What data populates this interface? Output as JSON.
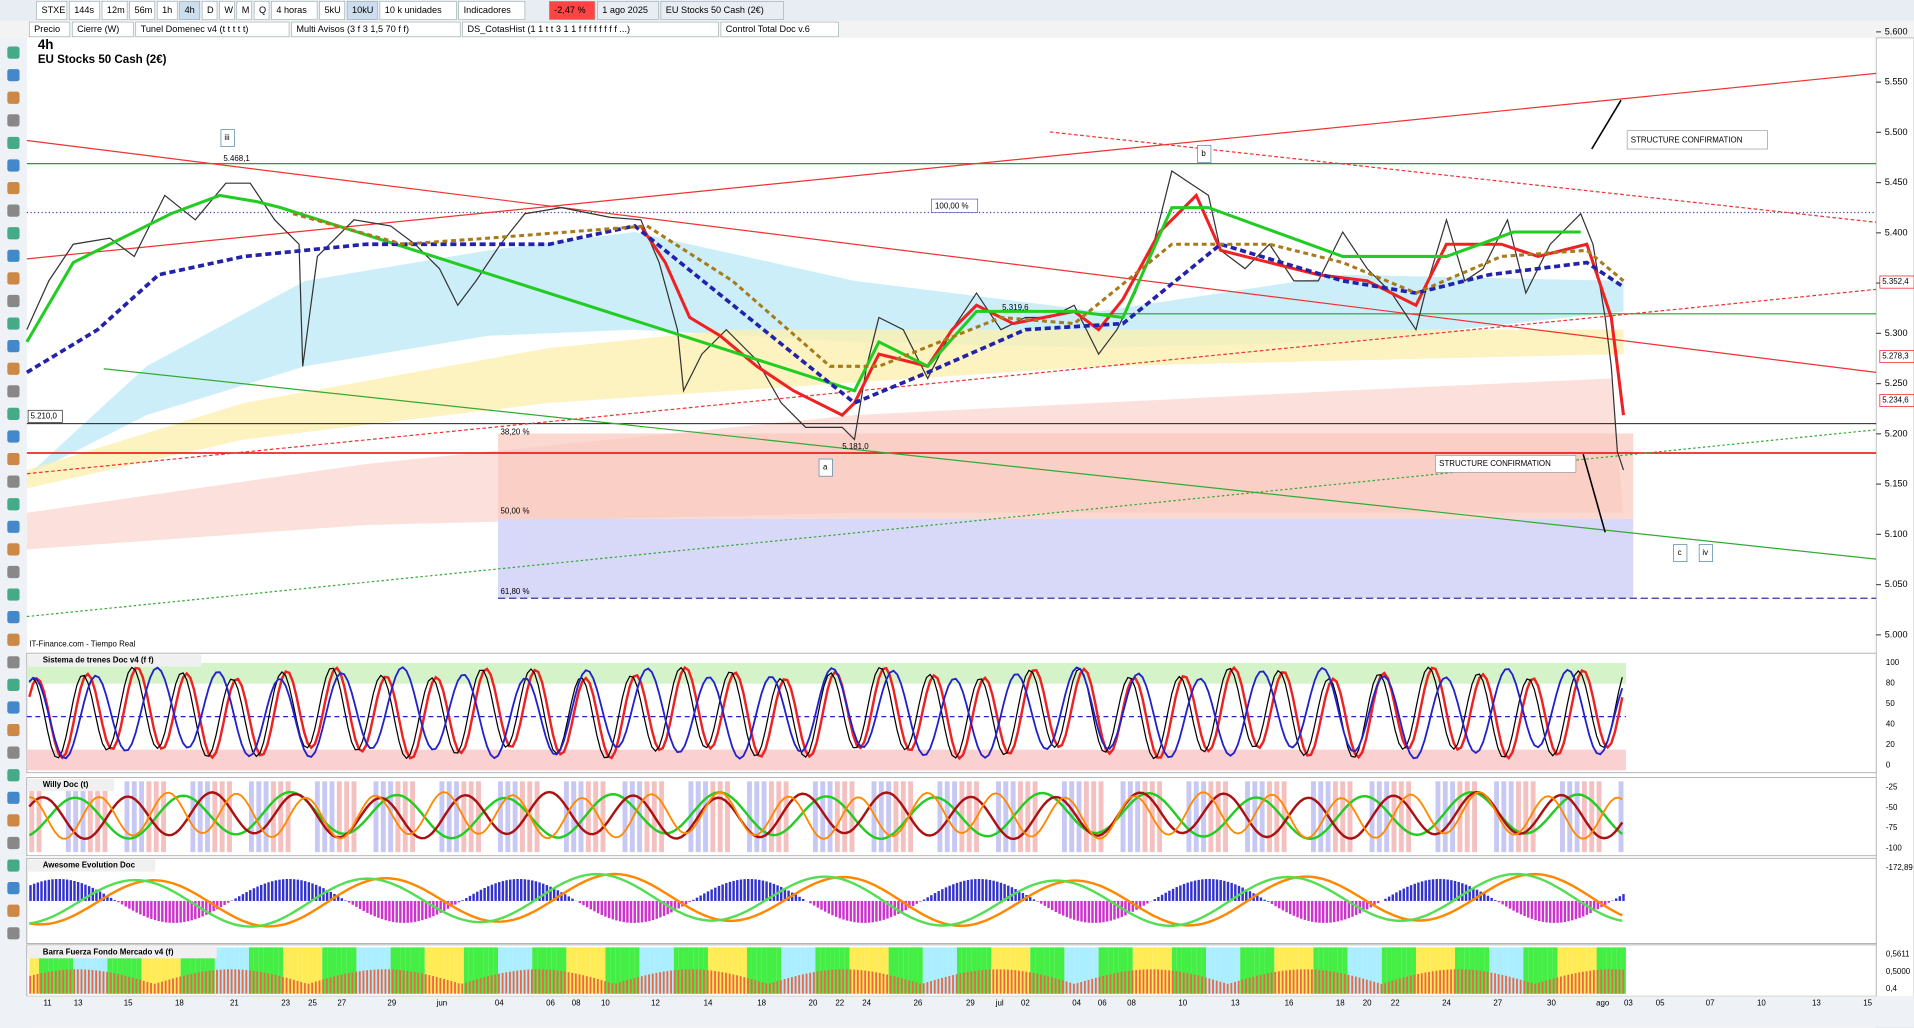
{
  "toolbar": {
    "symbol": "STXE",
    "intervals": [
      "144s",
      "12m",
      "56m",
      "1h",
      "4h",
      "D",
      "W",
      "M",
      "Q"
    ],
    "period": "4 horas",
    "units": [
      "5kU",
      "10kU"
    ],
    "units_select": "10 k unidades",
    "indicators": "Indicadores",
    "change": "-2,47 %",
    "date": "1 ago 2025",
    "instrument": "EU Stocks 50 Cash (2€)"
  },
  "indicator_tabs": [
    "Precio",
    "Cierre (W)",
    "Tunel Domenec v4 (t t t t t)",
    "Multi Avisos (3 f 3 1,5 70 f f)",
    "DS_CotasHist (1 1 t t 3 1 1 f f f f f f f f ...)",
    "Control Total Doc v.6"
  ],
  "chart": {
    "timeframe": "4h",
    "name": "EU Stocks 50 Cash (2€)",
    "source": "IT-Finance.com - Tiempo Real",
    "price_ticks": [
      {
        "value": 5600,
        "label": "5.600"
      },
      {
        "value": 5550,
        "label": "5.550"
      },
      {
        "value": 5500,
        "label": "5.500"
      },
      {
        "value": 5450,
        "label": "5.450"
      },
      {
        "value": 5400,
        "label": "5.400"
      },
      {
        "value": 5350,
        "label": "5.350"
      },
      {
        "value": 5300,
        "label": "5.300"
      },
      {
        "value": 5250,
        "label": "5.250"
      },
      {
        "value": 5200,
        "label": "5.200"
      },
      {
        "value": 5150,
        "label": "5.150"
      },
      {
        "value": 5100,
        "label": "5.100"
      },
      {
        "value": 5050,
        "label": "5.050"
      },
      {
        "value": 5000,
        "label": "5.000"
      }
    ],
    "price_tags": [
      "5.352,4",
      "5.278,3",
      "5.234,6"
    ],
    "annotations": {
      "high": "5.468,1",
      "fib100": "100,00 %",
      "level": "5.319,6",
      "fib38": "38,20 %",
      "fib50": "50,00 %",
      "fib62": "61,80 %",
      "low": "5.181,0",
      "mark": "5.210,0",
      "structure_top": "STRUCTURE CONFIRMATION",
      "structure_bottom": "STRUCTURE CONFIRMATION"
    },
    "waves": {
      "iii": "iii",
      "b": "b",
      "a": "a",
      "c": "c",
      "iv": "iv"
    },
    "x_labels": [
      "11",
      "13",
      "15",
      "18",
      "21",
      "23",
      "25",
      "27",
      "29",
      "jun",
      "04",
      "06",
      "08",
      "10",
      "12",
      "14",
      "18",
      "20",
      "22",
      "24",
      "26",
      "29",
      "jul",
      "02",
      "04",
      "06",
      "08",
      "10",
      "13",
      "16",
      "18",
      "20",
      "22",
      "24",
      "27",
      "30",
      "ago",
      "03",
      "05",
      "07",
      "10",
      "13",
      "15"
    ]
  },
  "panels": [
    {
      "title": "Sistema de trenes Doc v4 (f f)",
      "ticks": [
        "100",
        "80",
        "50",
        "40",
        "20",
        "0"
      ]
    },
    {
      "title": "Willy Doc (t)",
      "ticks": [
        "-25",
        "-50",
        "-75",
        "-100"
      ]
    },
    {
      "title": "Awesome Evolution Doc",
      "ticks": [
        "-172,89"
      ]
    },
    {
      "title": "Barra Fuerza Fondo Mercado v4 (f)",
      "ticks": [
        "0,5611",
        "0,5000",
        "0,4"
      ]
    }
  ]
}
